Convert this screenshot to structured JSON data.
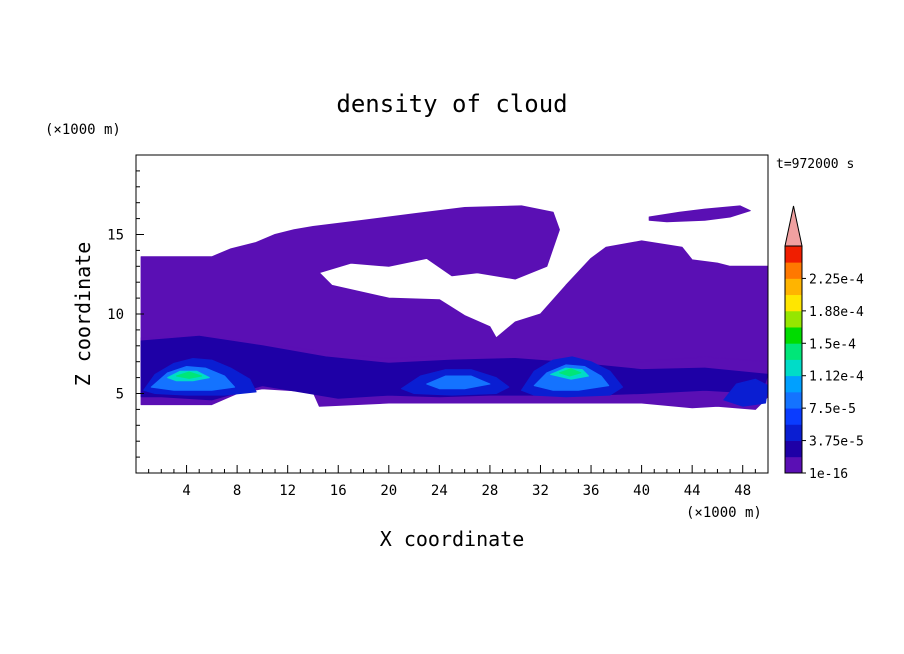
{
  "chart_data": {
    "type": "heatmap",
    "title": "density of cloud",
    "time_label": "t=972000 s",
    "xlabel": "X coordinate",
    "ylabel": "Z coordinate",
    "x_unit": "(×1000 m)",
    "y_unit": "(×1000 m)",
    "xlim": [
      0,
      50
    ],
    "ylim": [
      0,
      20
    ],
    "x_ticks": [
      4,
      8,
      12,
      16,
      20,
      24,
      28,
      32,
      36,
      40,
      44,
      48
    ],
    "y_ticks": [
      5,
      10,
      15
    ],
    "colorbar": {
      "labels": [
        "2.25e-4",
        "1.88e-4",
        "1.5e-4",
        "1.12e-4",
        "7.5e-5",
        "3.75e-5",
        "1e-16"
      ],
      "levels": [
        1e-16,
        1.875e-05,
        3.75e-05,
        5.625e-05,
        7.5e-05,
        9.375e-05,
        0.0001125,
        0.00013125,
        0.00015,
        0.00016875,
        0.0001875,
        0.00020625,
        0.000225,
        0.00024375
      ],
      "colors": [
        "#5a0fb4",
        "#1e00a6",
        "#0a1ed2",
        "#0a3cff",
        "#1473ff",
        "#00a0ff",
        "#00dcc8",
        "#00e678",
        "#00dc00",
        "#96e600",
        "#ffe600",
        "#ffb400",
        "#ff7800",
        "#f01e00"
      ],
      "extend_color": "#f0a0a0",
      "extend": "max"
    },
    "regions": [
      {
        "level": 0,
        "desc": "upper thin cloud",
        "points": [
          [
            0.4,
            13.6
          ],
          [
            6,
            13.6
          ],
          [
            7.5,
            14.1
          ],
          [
            9.5,
            14.5
          ],
          [
            11,
            15.0
          ],
          [
            12.5,
            15.3
          ],
          [
            14,
            15.5
          ],
          [
            18,
            15.9
          ],
          [
            22,
            16.3
          ],
          [
            26,
            16.7
          ],
          [
            30.5,
            16.8
          ],
          [
            33,
            16.4
          ],
          [
            33.5,
            15.3
          ],
          [
            32.5,
            13.0
          ],
          [
            30,
            12.2
          ],
          [
            27,
            12.6
          ],
          [
            25,
            12.4
          ],
          [
            23,
            13.5
          ],
          [
            20,
            13.0
          ],
          [
            17,
            13.2
          ],
          [
            14.5,
            12.6
          ],
          [
            15.5,
            11.8
          ],
          [
            20,
            11.0
          ],
          [
            24,
            10.9
          ],
          [
            26,
            9.9
          ],
          [
            28,
            9.2
          ],
          [
            28.5,
            8.5
          ],
          [
            30,
            9.5
          ],
          [
            32,
            10.0
          ],
          [
            34,
            11.8
          ],
          [
            36,
            13.5
          ],
          [
            37.2,
            14.2
          ],
          [
            40,
            14.6
          ],
          [
            43.2,
            14.2
          ],
          [
            44,
            13.4
          ],
          [
            46,
            13.2
          ],
          [
            47,
            13.0
          ],
          [
            50,
            13.0
          ],
          [
            50,
            7.0
          ],
          [
            0.4,
            7.0
          ]
        ]
      },
      {
        "level": 0,
        "desc": "top streamer",
        "points": [
          [
            40.6,
            16.1
          ],
          [
            43,
            16.4
          ],
          [
            45,
            16.6
          ],
          [
            47.8,
            16.8
          ],
          [
            48.6,
            16.5
          ],
          [
            47,
            16.1
          ],
          [
            45,
            15.9
          ],
          [
            42,
            15.8
          ],
          [
            40.6,
            15.9
          ]
        ]
      },
      {
        "level": 0,
        "desc": "lower cloud deck",
        "points": [
          [
            0.4,
            8.5
          ],
          [
            5,
            8.6
          ],
          [
            10,
            8.2
          ],
          [
            15,
            7.6
          ],
          [
            20,
            7.2
          ],
          [
            25,
            7.4
          ],
          [
            30,
            7.4
          ],
          [
            35,
            7.1
          ],
          [
            40,
            7.0
          ],
          [
            45,
            7.3
          ],
          [
            50,
            7.0
          ],
          [
            50,
            4.8
          ],
          [
            49,
            4.0
          ],
          [
            46,
            4.2
          ],
          [
            44,
            4.1
          ],
          [
            40,
            4.4
          ],
          [
            36,
            4.4
          ],
          [
            32,
            4.4
          ],
          [
            28,
            4.4
          ],
          [
            24,
            4.4
          ],
          [
            20,
            4.4
          ],
          [
            14.5,
            4.2
          ],
          [
            14,
            5.1
          ],
          [
            10,
            5.3
          ],
          [
            8,
            5.0
          ],
          [
            6,
            4.3
          ],
          [
            0.4,
            4.3
          ]
        ]
      },
      {
        "level": 1,
        "desc": "dense band",
        "points": [
          [
            0.4,
            8.3
          ],
          [
            5,
            8.6
          ],
          [
            10,
            8.0
          ],
          [
            15,
            7.3
          ],
          [
            20,
            6.9
          ],
          [
            25,
            7.1
          ],
          [
            30,
            7.2
          ],
          [
            35,
            6.9
          ],
          [
            40,
            6.5
          ],
          [
            45,
            6.6
          ],
          [
            50,
            6.2
          ],
          [
            49.5,
            5.0
          ],
          [
            45,
            5.2
          ],
          [
            40,
            5.0
          ],
          [
            36,
            4.9
          ],
          [
            32,
            4.9
          ],
          [
            28,
            4.9
          ],
          [
            24,
            4.8
          ],
          [
            20,
            4.9
          ],
          [
            16,
            4.7
          ],
          [
            10,
            5.5
          ],
          [
            6,
            4.6
          ],
          [
            2,
            4.8
          ],
          [
            0.4,
            4.8
          ]
        ]
      },
      {
        "level": 2,
        "desc": "left core",
        "points": [
          [
            0.6,
            5.2
          ],
          [
            1.5,
            6.2
          ],
          [
            3,
            6.9
          ],
          [
            4.5,
            7.2
          ],
          [
            6,
            7.1
          ],
          [
            7.5,
            6.6
          ],
          [
            9,
            5.9
          ],
          [
            9.5,
            5.1
          ],
          [
            7,
            4.9
          ],
          [
            4,
            4.9
          ],
          [
            1.5,
            5.0
          ]
        ]
      },
      {
        "level": 2,
        "desc": "middle core",
        "points": [
          [
            21,
            5.3
          ],
          [
            22.5,
            6.1
          ],
          [
            24.5,
            6.5
          ],
          [
            26.5,
            6.5
          ],
          [
            28.5,
            6.0
          ],
          [
            29.5,
            5.4
          ],
          [
            28.5,
            5.0
          ],
          [
            25,
            4.9
          ],
          [
            22,
            5.0
          ]
        ]
      },
      {
        "level": 2,
        "desc": "right core",
        "points": [
          [
            30.5,
            5.2
          ],
          [
            31.5,
            6.4
          ],
          [
            33,
            7.1
          ],
          [
            34.5,
            7.3
          ],
          [
            36,
            7.0
          ],
          [
            37.5,
            6.4
          ],
          [
            38.5,
            5.4
          ],
          [
            37.5,
            4.9
          ],
          [
            34,
            4.8
          ],
          [
            31.5,
            4.9
          ]
        ]
      },
      {
        "level": 2,
        "desc": "far right patch",
        "points": [
          [
            46.5,
            4.6
          ],
          [
            47.5,
            5.6
          ],
          [
            49,
            5.9
          ],
          [
            50,
            5.5
          ],
          [
            49.8,
            4.4
          ],
          [
            48,
            4.2
          ]
        ]
      },
      {
        "level": 4,
        "desc": "left core inner",
        "points": [
          [
            1.2,
            5.4
          ],
          [
            2.5,
            6.3
          ],
          [
            4,
            6.7
          ],
          [
            5.5,
            6.6
          ],
          [
            7,
            6.1
          ],
          [
            7.8,
            5.4
          ],
          [
            6,
            5.2
          ],
          [
            3,
            5.2
          ]
        ]
      },
      {
        "level": 4,
        "desc": "middle core inner",
        "points": [
          [
            23,
            5.6
          ],
          [
            24.5,
            6.1
          ],
          [
            26.5,
            6.1
          ],
          [
            28,
            5.6
          ],
          [
            26,
            5.3
          ],
          [
            24,
            5.3
          ]
        ]
      },
      {
        "level": 4,
        "desc": "right core inner",
        "points": [
          [
            31.5,
            5.5
          ],
          [
            32.5,
            6.3
          ],
          [
            34,
            6.8
          ],
          [
            35.5,
            6.7
          ],
          [
            36.8,
            6.1
          ],
          [
            37.4,
            5.5
          ],
          [
            35,
            5.2
          ],
          [
            33,
            5.2
          ]
        ]
      },
      {
        "level": 6,
        "desc": "left peak",
        "points": [
          [
            2.5,
            6.0
          ],
          [
            3.5,
            6.4
          ],
          [
            4.8,
            6.4
          ],
          [
            5.8,
            6.0
          ],
          [
            4.5,
            5.8
          ],
          [
            3.2,
            5.8
          ]
        ]
      },
      {
        "level": 6,
        "desc": "right peak",
        "points": [
          [
            32.8,
            6.2
          ],
          [
            34,
            6.6
          ],
          [
            35.3,
            6.5
          ],
          [
            35.8,
            6.1
          ],
          [
            34.4,
            5.9
          ]
        ]
      },
      {
        "level": 7,
        "desc": "left max",
        "points": [
          [
            3.2,
            6.1
          ],
          [
            4.2,
            6.35
          ],
          [
            5.2,
            6.1
          ],
          [
            4.2,
            5.95
          ]
        ]
      },
      {
        "level": 7,
        "desc": "right max",
        "points": [
          [
            33.5,
            6.3
          ],
          [
            34.4,
            6.55
          ],
          [
            35.2,
            6.3
          ],
          [
            34.3,
            6.1
          ]
        ]
      }
    ]
  }
}
